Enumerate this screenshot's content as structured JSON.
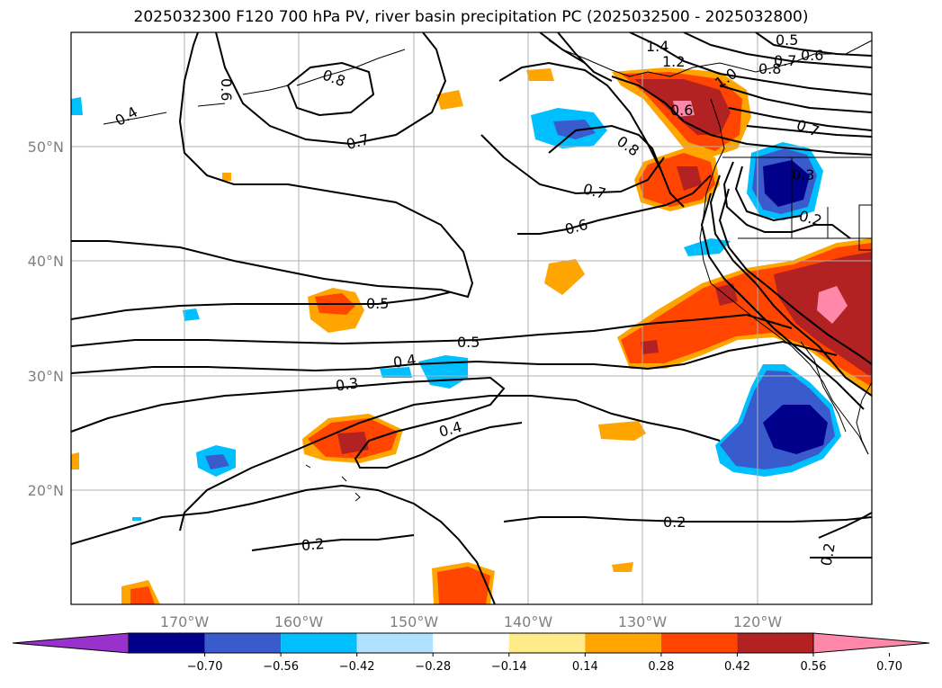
{
  "title": "2025032300 F120 700 hPa PV, river basin precipitation PC (2025032500 - 2025032800)",
  "map": {
    "lon_labels": [
      "170°W",
      "160°W",
      "150°W",
      "140°W",
      "130°W",
      "120°W"
    ],
    "lat_labels": [
      "50°N",
      "40°N",
      "30°N",
      "20°N"
    ],
    "grid": true
  },
  "contours": {
    "labels": [
      "0.4",
      "0.6",
      "0.8",
      "0.7",
      "1.4",
      "1.2",
      "1.0",
      "0.5",
      "0.7",
      "0.6",
      "0.8",
      "0.6",
      "0.8",
      "0.7",
      "0.6",
      "0.3",
      "0.2",
      "0.7",
      "0.5",
      "0.5",
      "0.4",
      "0.3",
      "0.4",
      "0.2",
      "0.2",
      "0.2"
    ]
  },
  "colorbar": {
    "colors": [
      "#9932cc",
      "#00008b",
      "#3a5bcc",
      "#00bfff",
      "#b0e2ff",
      "#ffffff",
      "#ffeb8a",
      "#ffa500",
      "#ff4500",
      "#b22222",
      "#ff88aa"
    ],
    "tick_labels": [
      "−0.70",
      "−0.56",
      "−0.42",
      "−0.28",
      "−0.14",
      "0.14",
      "0.28",
      "0.42",
      "0.56",
      "0.70"
    ]
  }
}
